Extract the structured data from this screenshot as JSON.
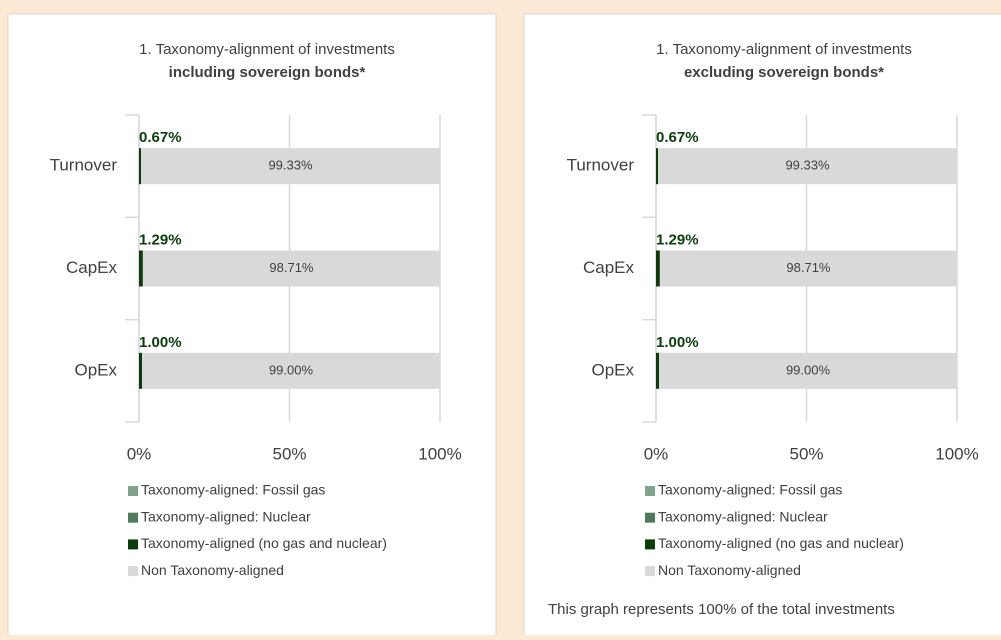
{
  "chart_data": [
    {
      "type": "bar",
      "orientation": "horizontal",
      "stacked": true,
      "title": "1. Taxonomy-alignment of investments",
      "subtitle": "including sovereign bonds*",
      "categories": [
        "Turnover",
        "CapEx",
        "OpEx"
      ],
      "series": [
        {
          "name": "Taxonomy-aligned: Fossil gas",
          "color": "#7fa48a",
          "values": [
            0,
            0,
            0
          ]
        },
        {
          "name": "Taxonomy-aligned: Nuclear",
          "color": "#4f7b5b",
          "values": [
            0,
            0,
            0
          ]
        },
        {
          "name": "Taxonomy-aligned (no gas and nuclear)",
          "color": "#0b3d0b",
          "values": [
            0.67,
            1.29,
            1.0
          ],
          "value_labels": [
            "0.67%",
            "1.29%",
            "1.00%"
          ]
        },
        {
          "name": "Non Taxonomy-aligned",
          "color": "#d9d9d9",
          "values": [
            99.33,
            98.71,
            99.0
          ],
          "value_labels": [
            "99.33%",
            "98.71%",
            "99.00%"
          ]
        }
      ],
      "xlim": [
        0,
        100
      ],
      "xticks": [
        {
          "value": 0,
          "label": "0%"
        },
        {
          "value": 50,
          "label": "50%"
        },
        {
          "value": 100,
          "label": "100%"
        }
      ],
      "grid": true,
      "legend": "bottom"
    },
    {
      "type": "bar",
      "orientation": "horizontal",
      "stacked": true,
      "title": "1. Taxonomy-alignment of investments",
      "subtitle": "excluding sovereign bonds*",
      "categories": [
        "Turnover",
        "CapEx",
        "OpEx"
      ],
      "series": [
        {
          "name": "Taxonomy-aligned: Fossil gas",
          "color": "#7fa48a",
          "values": [
            0,
            0,
            0
          ]
        },
        {
          "name": "Taxonomy-aligned: Nuclear",
          "color": "#4f7b5b",
          "values": [
            0,
            0,
            0
          ]
        },
        {
          "name": "Taxonomy-aligned (no gas and nuclear)",
          "color": "#0b3d0b",
          "values": [
            0.67,
            1.29,
            1.0
          ],
          "value_labels": [
            "0.67%",
            "1.29%",
            "1.00%"
          ]
        },
        {
          "name": "Non Taxonomy-aligned",
          "color": "#d9d9d9",
          "values": [
            99.33,
            98.71,
            99.0
          ],
          "value_labels": [
            "99.33%",
            "98.71%",
            "99.00%"
          ]
        }
      ],
      "xlim": [
        0,
        100
      ],
      "xticks": [
        {
          "value": 0,
          "label": "0%"
        },
        {
          "value": 50,
          "label": "50%"
        },
        {
          "value": 100,
          "label": "100%"
        }
      ],
      "grid": true,
      "legend": "bottom",
      "annotation": "This graph represents 100% of the total investments"
    }
  ]
}
